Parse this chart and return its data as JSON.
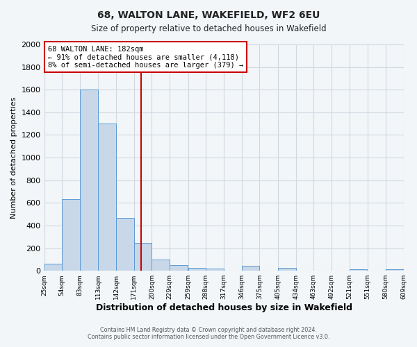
{
  "title": "68, WALTON LANE, WAKEFIELD, WF2 6EU",
  "subtitle": "Size of property relative to detached houses in Wakefield",
  "xlabel": "Distribution of detached houses by size in Wakefield",
  "ylabel": "Number of detached properties",
  "bar_left_edges": [
    25,
    54,
    83,
    113,
    142,
    171,
    200,
    229,
    259,
    288,
    317,
    346,
    375,
    405,
    434,
    463,
    492,
    521,
    551,
    580
  ],
  "bar_heights": [
    60,
    630,
    1600,
    1300,
    470,
    245,
    100,
    50,
    25,
    20,
    0,
    45,
    0,
    25,
    0,
    0,
    0,
    15,
    0,
    15
  ],
  "bin_width": 29,
  "bar_color": "#c8d8e8",
  "bar_edge_color": "#5b9bd5",
  "tick_labels": [
    "25sqm",
    "54sqm",
    "83sqm",
    "113sqm",
    "142sqm",
    "171sqm",
    "200sqm",
    "229sqm",
    "259sqm",
    "288sqm",
    "317sqm",
    "346sqm",
    "375sqm",
    "405sqm",
    "434sqm",
    "463sqm",
    "492sqm",
    "521sqm",
    "551sqm",
    "580sqm",
    "609sqm"
  ],
  "property_line_x": 182,
  "ylim": [
    0,
    2000
  ],
  "yticks": [
    0,
    200,
    400,
    600,
    800,
    1000,
    1200,
    1400,
    1600,
    1800,
    2000
  ],
  "annotation_line1": "68 WALTON LANE: 182sqm",
  "annotation_line2": "← 91% of detached houses are smaller (4,118)",
  "annotation_line3": "8% of semi-detached houses are larger (379) →",
  "footer_line1": "Contains HM Land Registry data © Crown copyright and database right 2024.",
  "footer_line2": "Contains public sector information licensed under the Open Government Licence v3.0.",
  "background_color": "#f2f6f9",
  "grid_color": "#d0d8e0",
  "annotation_box_color": "#ffffff",
  "annotation_box_edge_color": "#cc0000",
  "red_line_color": "#cc0000"
}
